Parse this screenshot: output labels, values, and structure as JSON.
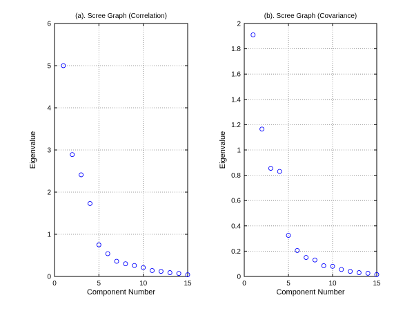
{
  "chart_data": [
    {
      "type": "scatter",
      "title": "(a).  Scree Graph (Correlation)",
      "xlabel": "Component Number",
      "ylabel": "Eigenvalue",
      "xlim": [
        0,
        15
      ],
      "ylim": [
        0,
        6
      ],
      "xticks": [
        0,
        5,
        10,
        15
      ],
      "yticks": [
        0,
        1,
        2,
        3,
        4,
        5,
        6
      ],
      "grid": true,
      "marker": "circle",
      "marker_color": "#0000ff",
      "series": [
        {
          "x": [
            1,
            2,
            3,
            4,
            5,
            6,
            7,
            8,
            9,
            10,
            11,
            12,
            13,
            14,
            15
          ],
          "y": [
            5.0,
            2.89,
            2.41,
            1.73,
            0.75,
            0.54,
            0.36,
            0.3,
            0.26,
            0.21,
            0.14,
            0.12,
            0.09,
            0.07,
            0.04
          ]
        }
      ]
    },
    {
      "type": "scatter",
      "title": "(b).  Scree Graph (Covariance)",
      "xlabel": "Component Number",
      "ylabel": "Eigenvalue",
      "xlim": [
        0,
        15
      ],
      "ylim": [
        0,
        2
      ],
      "xticks": [
        0,
        5,
        10,
        15
      ],
      "yticks": [
        0,
        0.2,
        0.4,
        0.6,
        0.8,
        1,
        1.2,
        1.4,
        1.6,
        1.8,
        2
      ],
      "grid": true,
      "marker": "circle",
      "marker_color": "#0000ff",
      "series": [
        {
          "x": [
            1,
            2,
            3,
            4,
            5,
            6,
            7,
            8,
            9,
            10,
            11,
            12,
            13,
            14,
            15
          ],
          "y": [
            1.91,
            1.165,
            0.855,
            0.83,
            0.325,
            0.205,
            0.15,
            0.13,
            0.085,
            0.08,
            0.055,
            0.04,
            0.03,
            0.025,
            0.015
          ]
        }
      ]
    }
  ]
}
